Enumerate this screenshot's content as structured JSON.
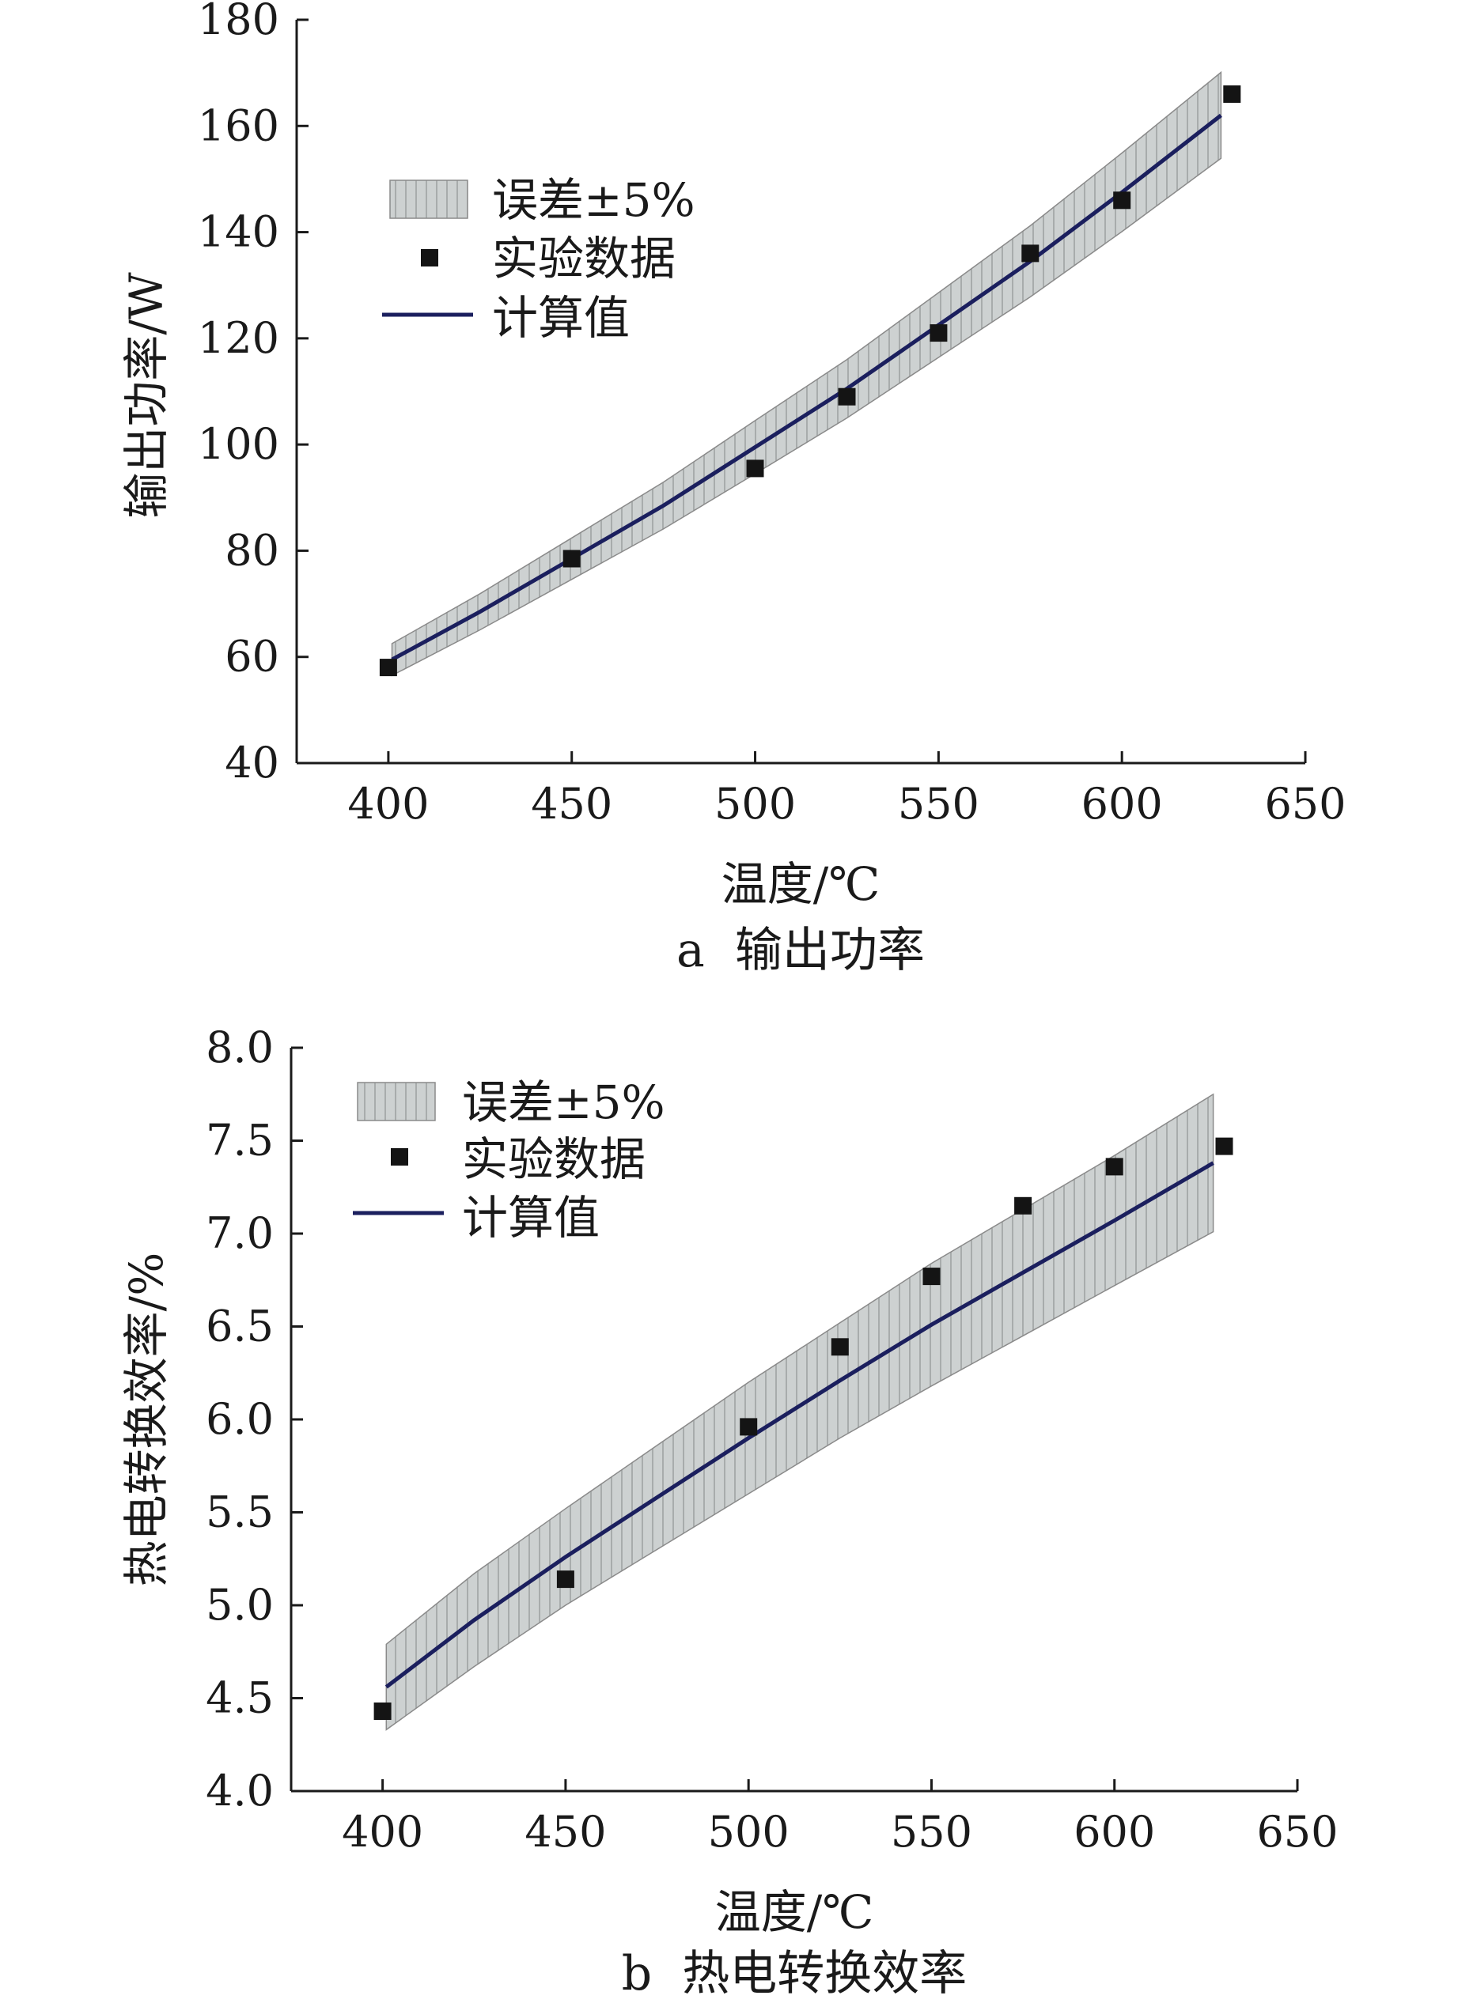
{
  "chart_data": [
    {
      "type": "line",
      "caption": "a  输出功率",
      "xlabel": "温度/℃",
      "ylabel": "输出功率/W",
      "xlim": [
        375,
        650
      ],
      "ylim": [
        40,
        180
      ],
      "xticks": [
        400,
        450,
        500,
        550,
        600,
        650
      ],
      "yticks": [
        40,
        60,
        80,
        100,
        120,
        140,
        160,
        180
      ],
      "grid": false,
      "legend_position": "top-left",
      "legend": [
        "误差±5%",
        "实验数据",
        "计算值"
      ],
      "series": [
        {
          "name": "计算值",
          "kind": "line",
          "color": "#1b1f5e",
          "x": [
            401,
            425,
            450,
            475,
            500,
            525,
            550,
            575,
            600,
            627
          ],
          "y": [
            59.5,
            68.5,
            78.5,
            88.5,
            99.5,
            110.5,
            122.5,
            134.5,
            147.5,
            162
          ]
        },
        {
          "name": "误差±5%",
          "kind": "band",
          "color": "#c8cccc",
          "x": [
            401,
            425,
            450,
            475,
            500,
            525,
            550,
            575,
            600,
            627
          ],
          "lower": [
            56.5,
            65.1,
            74.6,
            84.1,
            94.5,
            105.0,
            116.4,
            127.8,
            140.1,
            153.9
          ],
          "upper": [
            62.5,
            71.9,
            82.4,
            92.9,
            104.5,
            116.0,
            128.6,
            141.2,
            154.9,
            170.1
          ]
        },
        {
          "name": "实验数据",
          "kind": "scatter",
          "color": "#141414",
          "x": [
            400,
            450,
            500,
            525,
            550,
            575,
            600,
            630
          ],
          "y": [
            58,
            78.5,
            95.5,
            109,
            121,
            136,
            146,
            166
          ]
        }
      ]
    },
    {
      "type": "line",
      "caption": "b  热电转换效率",
      "xlabel": "温度/℃",
      "ylabel": "热电转换效率/%",
      "xlim": [
        375,
        650
      ],
      "ylim": [
        4.0,
        8.0
      ],
      "xticks": [
        400,
        450,
        500,
        550,
        600,
        650
      ],
      "yticks": [
        4.0,
        4.5,
        5.0,
        5.5,
        6.0,
        6.5,
        7.0,
        7.5,
        8.0
      ],
      "grid": false,
      "legend_position": "top-left",
      "legend": [
        "误差±5%",
        "实验数据",
        "计算值"
      ],
      "series": [
        {
          "name": "计算值",
          "kind": "line",
          "color": "#1b1f5e",
          "x": [
            401,
            425,
            450,
            475,
            500,
            525,
            550,
            575,
            600,
            627
          ],
          "y": [
            4.56,
            4.92,
            5.26,
            5.58,
            5.9,
            6.21,
            6.51,
            6.79,
            7.07,
            7.38
          ]
        },
        {
          "name": "误差±5%",
          "kind": "band",
          "color": "#c8cccc",
          "x": [
            401,
            425,
            450,
            475,
            500,
            525,
            550,
            575,
            600,
            627
          ],
          "lower": [
            4.33,
            4.67,
            5.0,
            5.3,
            5.6,
            5.9,
            6.18,
            6.45,
            6.72,
            7.01
          ],
          "upper": [
            4.79,
            5.17,
            5.52,
            5.86,
            6.2,
            6.52,
            6.84,
            7.13,
            7.42,
            7.75
          ]
        },
        {
          "name": "实验数据",
          "kind": "scatter",
          "color": "#141414",
          "x": [
            400,
            450,
            500,
            525,
            550,
            575,
            600,
            630
          ],
          "y": [
            4.43,
            5.14,
            5.96,
            6.39,
            6.77,
            7.15,
            7.36,
            7.47
          ]
        }
      ]
    }
  ]
}
